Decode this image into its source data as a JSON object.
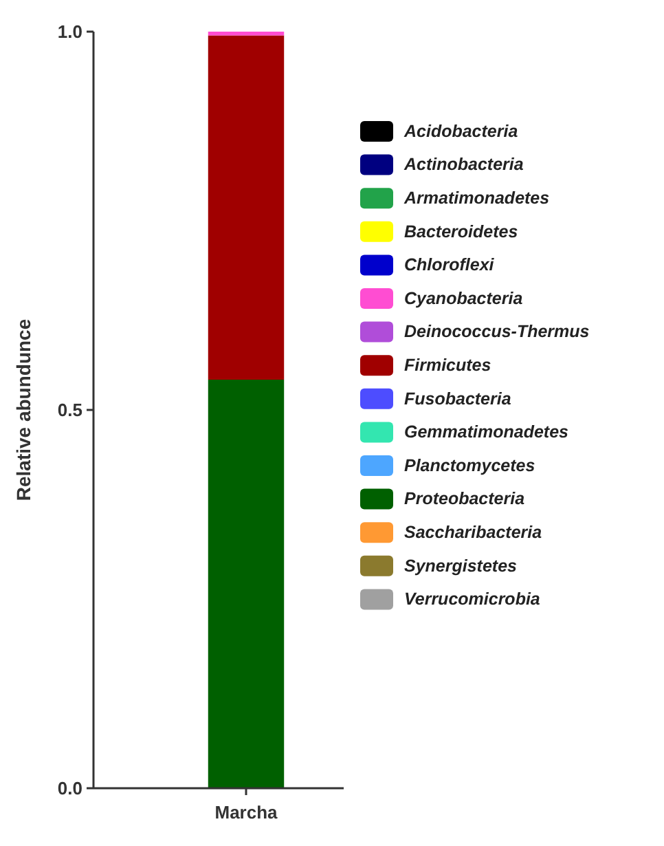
{
  "chart_data": {
    "type": "bar",
    "stacked": true,
    "ylabel": "Relative abundunce",
    "categories": [
      "Marcha"
    ],
    "ylim": [
      0,
      1
    ],
    "yticks": [
      {
        "value": 0,
        "label": "0.0"
      },
      {
        "value": 0.5,
        "label": "0.5"
      },
      {
        "value": 1,
        "label": "1.0"
      }
    ],
    "legend": "right",
    "grid": false,
    "series": [
      {
        "name": "Verrucomicrobia",
        "color": "#a0a0a0",
        "values": [
          0
        ]
      },
      {
        "name": "Synergistetes",
        "color": "#8b7a2e",
        "values": [
          0
        ]
      },
      {
        "name": "Saccharibacteria",
        "color": "#ff9933",
        "values": [
          0
        ]
      },
      {
        "name": "Proteobacteria",
        "color": "#006000",
        "values": [
          0.54
        ]
      },
      {
        "name": "Planctomycetes",
        "color": "#4da6ff",
        "values": [
          0
        ]
      },
      {
        "name": "Gemmatimonadetes",
        "color": "#33e6b0",
        "values": [
          0
        ]
      },
      {
        "name": "Fusobacteria",
        "color": "#4d4dff",
        "values": [
          0
        ]
      },
      {
        "name": "Firmicutes",
        "color": "#a00000",
        "values": [
          0.455
        ]
      },
      {
        "name": "Deinococcus-Thermus",
        "color": "#b04dd9",
        "values": [
          0
        ]
      },
      {
        "name": "Cyanobacteria",
        "color": "#ff4dd2",
        "values": [
          0.005
        ]
      },
      {
        "name": "Chloroflexi",
        "color": "#0000cc",
        "values": [
          0
        ]
      },
      {
        "name": "Bacteroidetes",
        "color": "#ffff00",
        "values": [
          0
        ]
      },
      {
        "name": "Armatimonadetes",
        "color": "#22a34a",
        "values": [
          0
        ]
      },
      {
        "name": "Actinobacteria",
        "color": "#000080",
        "values": [
          0
        ]
      },
      {
        "name": "Acidobacteria",
        "color": "#000000",
        "values": [
          0
        ]
      }
    ]
  }
}
